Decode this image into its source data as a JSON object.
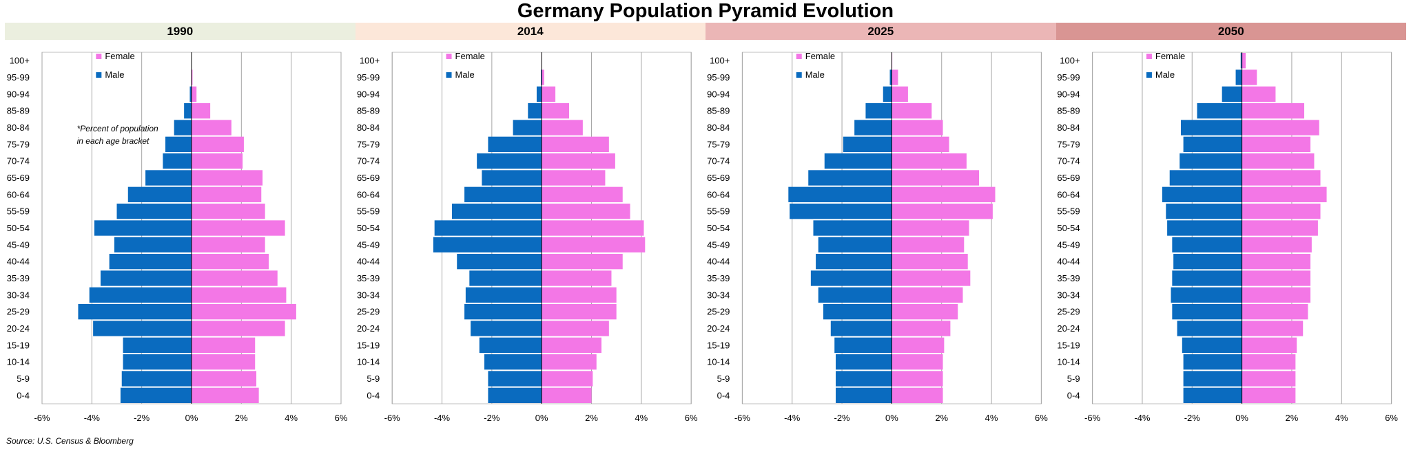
{
  "title": "Germany Population Pyramid Evolution",
  "source": "Source: U.S. Census & Bloomberg",
  "annotation": [
    "*Percent of population",
    "in each age bracket"
  ],
  "colors": {
    "female": "#F377E6",
    "male": "#0A6BBF",
    "header_bg": [
      "#EBEFDF",
      "#FCE7D9",
      "#EBB6B6",
      "#D99593"
    ]
  },
  "chart_data": [
    {
      "type": "bar",
      "orientation": "horizontal-population-pyramid",
      "title": "1990",
      "categories": [
        "0-4",
        "5-9",
        "10-14",
        "15-19",
        "20-24",
        "25-29",
        "30-34",
        "35-39",
        "40-44",
        "45-49",
        "50-54",
        "55-59",
        "60-64",
        "65-69",
        "70-74",
        "75-79",
        "80-84",
        "85-89",
        "90-94",
        "95-99",
        "100+"
      ],
      "series": [
        {
          "name": "Female",
          "values": [
            2.7,
            2.6,
            2.55,
            2.55,
            3.75,
            4.2,
            3.8,
            3.45,
            3.1,
            2.95,
            3.75,
            2.95,
            2.8,
            2.85,
            2.05,
            2.1,
            1.6,
            0.75,
            0.2,
            0.04,
            0.01
          ]
        },
        {
          "name": "Male",
          "values": [
            -2.85,
            -2.8,
            -2.75,
            -2.75,
            -3.95,
            -4.55,
            -4.1,
            -3.65,
            -3.3,
            -3.1,
            -3.9,
            -3.0,
            -2.55,
            -1.85,
            -1.15,
            -1.05,
            -0.7,
            -0.3,
            -0.07,
            -0.01,
            -0.005
          ]
        }
      ],
      "xlim": [
        -6,
        6
      ],
      "xticks": [
        "-6%",
        "-4%",
        "-2%",
        "0%",
        "2%",
        "4%",
        "6%"
      ],
      "legend": "top-left"
    },
    {
      "type": "bar",
      "orientation": "horizontal-population-pyramid",
      "title": "2014",
      "categories": [
        "0-4",
        "5-9",
        "10-14",
        "15-19",
        "20-24",
        "25-29",
        "30-34",
        "35-39",
        "40-44",
        "45-49",
        "50-54",
        "55-59",
        "60-64",
        "65-69",
        "70-74",
        "75-79",
        "80-84",
        "85-89",
        "90-94",
        "95-99",
        "100+"
      ],
      "series": [
        {
          "name": "Female",
          "values": [
            2.0,
            2.05,
            2.2,
            2.4,
            2.7,
            3.0,
            3.0,
            2.8,
            3.25,
            4.15,
            4.1,
            3.55,
            3.25,
            2.55,
            2.95,
            2.7,
            1.65,
            1.1,
            0.55,
            0.1,
            0.01
          ]
        },
        {
          "name": "Male",
          "values": [
            -2.15,
            -2.15,
            -2.3,
            -2.5,
            -2.85,
            -3.1,
            -3.05,
            -2.9,
            -3.4,
            -4.35,
            -4.3,
            -3.6,
            -3.1,
            -2.4,
            -2.6,
            -2.15,
            -1.15,
            -0.55,
            -0.2,
            -0.03,
            -0.005
          ]
        }
      ],
      "xlim": [
        -6,
        6
      ],
      "xticks": [
        "-6%",
        "-4%",
        "-2%",
        "0%",
        "2%",
        "4%",
        "6%"
      ],
      "legend": "top-left"
    },
    {
      "type": "bar",
      "orientation": "horizontal-population-pyramid",
      "title": "2025",
      "categories": [
        "0-4",
        "5-9",
        "10-14",
        "15-19",
        "20-24",
        "25-29",
        "30-34",
        "35-39",
        "40-44",
        "45-49",
        "50-54",
        "55-59",
        "60-64",
        "65-69",
        "70-74",
        "75-79",
        "80-84",
        "85-89",
        "90-94",
        "95-99",
        "100+"
      ],
      "series": [
        {
          "name": "Female",
          "values": [
            2.05,
            2.05,
            2.05,
            2.1,
            2.35,
            2.65,
            2.85,
            3.15,
            3.05,
            2.9,
            3.1,
            4.05,
            4.15,
            3.5,
            3.0,
            2.3,
            2.05,
            1.6,
            0.65,
            0.25,
            0.02
          ]
        },
        {
          "name": "Male",
          "values": [
            -2.25,
            -2.25,
            -2.25,
            -2.3,
            -2.45,
            -2.75,
            -2.95,
            -3.25,
            -3.05,
            -2.95,
            -3.15,
            -4.1,
            -4.15,
            -3.35,
            -2.7,
            -1.95,
            -1.5,
            -1.05,
            -0.35,
            -0.08,
            -0.01
          ]
        }
      ],
      "xlim": [
        -6,
        6
      ],
      "xticks": [
        "-6%",
        "-4%",
        "-2%",
        "0%",
        "2%",
        "4%",
        "6%"
      ],
      "legend": "top-left"
    },
    {
      "type": "bar",
      "orientation": "horizontal-population-pyramid",
      "title": "2050",
      "categories": [
        "0-4",
        "5-9",
        "10-14",
        "15-19",
        "20-24",
        "25-29",
        "30-34",
        "35-39",
        "40-44",
        "45-49",
        "50-54",
        "55-59",
        "60-64",
        "65-69",
        "70-74",
        "75-79",
        "80-84",
        "85-89",
        "90-94",
        "95-99",
        "100+"
      ],
      "series": [
        {
          "name": "Female",
          "values": [
            2.15,
            2.15,
            2.15,
            2.2,
            2.45,
            2.65,
            2.75,
            2.75,
            2.75,
            2.8,
            3.05,
            3.15,
            3.4,
            3.15,
            2.9,
            2.75,
            3.1,
            2.5,
            1.35,
            0.6,
            0.15
          ]
        },
        {
          "name": "Male",
          "values": [
            -2.35,
            -2.35,
            -2.35,
            -2.4,
            -2.6,
            -2.8,
            -2.85,
            -2.8,
            -2.75,
            -2.8,
            -3.0,
            -3.05,
            -3.2,
            -2.9,
            -2.5,
            -2.35,
            -2.45,
            -1.8,
            -0.8,
            -0.25,
            -0.05
          ]
        }
      ],
      "xlim": [
        -6,
        6
      ],
      "xticks": [
        "-6%",
        "-4%",
        "-2%",
        "0%",
        "2%",
        "4%",
        "6%"
      ],
      "legend": "top-left"
    }
  ]
}
